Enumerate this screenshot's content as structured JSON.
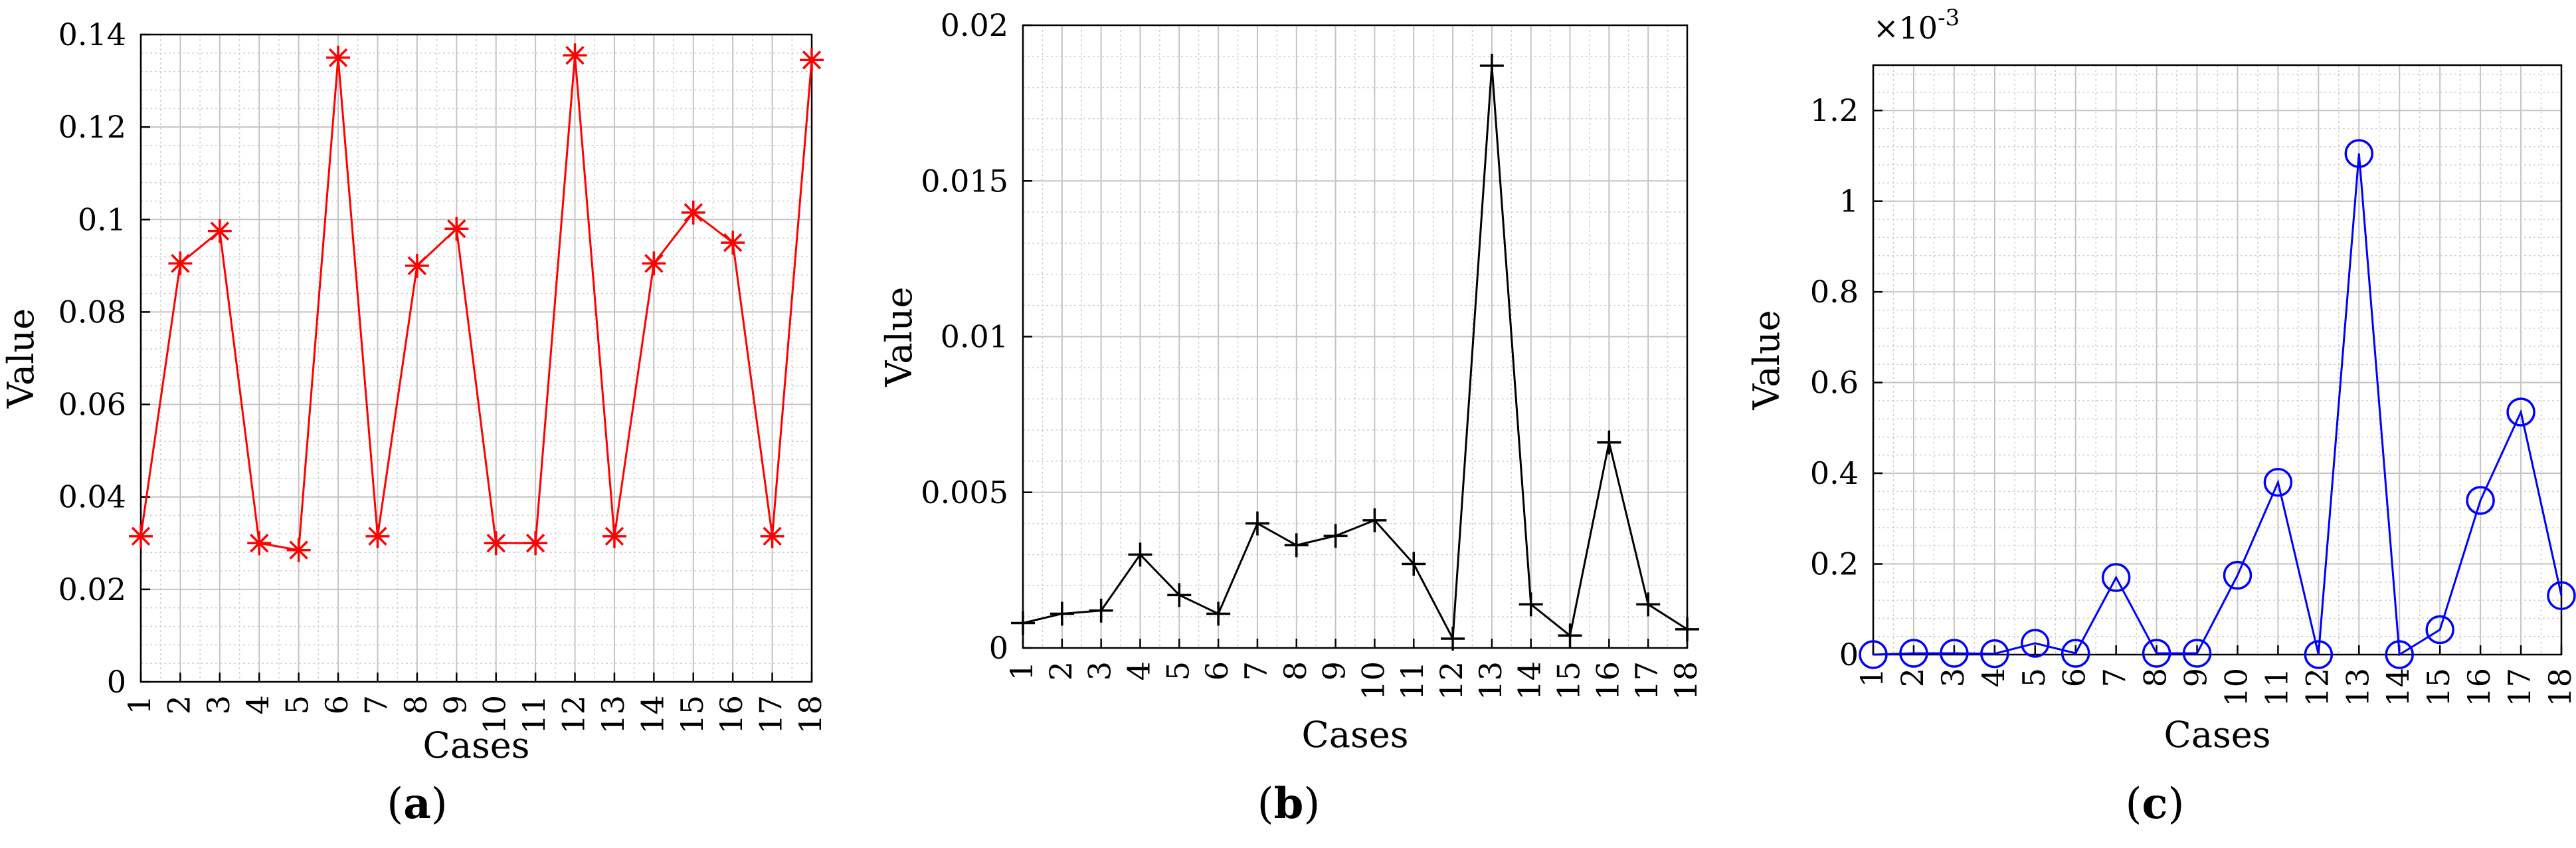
{
  "captions": [
    {
      "open": "(",
      "letter": "a",
      "close": ")"
    },
    {
      "open": "(",
      "letter": "b",
      "close": ")"
    },
    {
      "open": "(",
      "letter": "c",
      "close": ")"
    }
  ],
  "chart_data": [
    {
      "type": "line",
      "title": "",
      "xlabel": "Cases",
      "ylabel": "Value",
      "x": [
        1,
        2,
        3,
        4,
        5,
        6,
        7,
        8,
        9,
        10,
        11,
        12,
        13,
        14,
        15,
        16,
        17,
        18
      ],
      "xlim": [
        1,
        18
      ],
      "ylim": [
        0,
        0.14
      ],
      "yticks": [
        0,
        0.02,
        0.04,
        0.06,
        0.08,
        0.1,
        0.12,
        0.14
      ],
      "ytick_labels": [
        "0",
        "0.02",
        "0.04",
        "0.06",
        "0.08",
        "0.1",
        "0.12",
        "0.14"
      ],
      "grid": true,
      "series": [
        {
          "values": [
            0.0315,
            0.0905,
            0.0975,
            0.03,
            0.0285,
            0.135,
            0.0315,
            0.09,
            0.098,
            0.03,
            0.03,
            0.1355,
            0.0315,
            0.0905,
            0.1015,
            0.095,
            0.0315,
            0.1345
          ],
          "color": "#ff0000",
          "marker": "asterisk"
        }
      ]
    },
    {
      "type": "line",
      "title": "",
      "xlabel": "Cases",
      "ylabel": "Value",
      "x": [
        1,
        2,
        3,
        4,
        5,
        6,
        7,
        8,
        9,
        10,
        11,
        12,
        13,
        14,
        15,
        16,
        17,
        18
      ],
      "xlim": [
        1,
        18
      ],
      "ylim": [
        0,
        0.02
      ],
      "yticks": [
        0,
        0.005,
        0.01,
        0.015,
        0.02
      ],
      "ytick_labels": [
        "0",
        "0.005",
        "0.01",
        "0.015",
        "0.02"
      ],
      "grid": true,
      "series": [
        {
          "values": [
            0.0008,
            0.0011,
            0.0012,
            0.003,
            0.0017,
            0.0011,
            0.004,
            0.0033,
            0.0036,
            0.0041,
            0.0027,
            0.0003,
            0.0187,
            0.0014,
            0.0004,
            0.0066,
            0.0014,
            0.0006
          ],
          "color": "#000000",
          "marker": "plus"
        }
      ]
    },
    {
      "type": "line",
      "title": "",
      "xlabel": "Cases",
      "ylabel": "Value",
      "exponent_label": {
        "base": "×10",
        "exp": "-3"
      },
      "x": [
        1,
        2,
        3,
        4,
        5,
        6,
        7,
        8,
        9,
        10,
        11,
        12,
        13,
        14,
        15,
        16,
        17,
        18
      ],
      "xlim": [
        1,
        18
      ],
      "ylim": [
        0,
        1.3
      ],
      "yticks": [
        0,
        0.2,
        0.4,
        0.6,
        0.8,
        1,
        1.2
      ],
      "ytick_labels": [
        "0",
        "0.2",
        "0.4",
        "0.6",
        "0.8",
        "1",
        "1.2"
      ],
      "grid": true,
      "series": [
        {
          "values": [
            0.0,
            0.003,
            0.003,
            0.002,
            0.025,
            0.003,
            0.17,
            0.003,
            0.003,
            0.175,
            0.38,
            0.0,
            1.105,
            0.0,
            0.055,
            0.34,
            0.535,
            0.13
          ],
          "color": "#0000ff",
          "marker": "circle"
        }
      ]
    }
  ]
}
